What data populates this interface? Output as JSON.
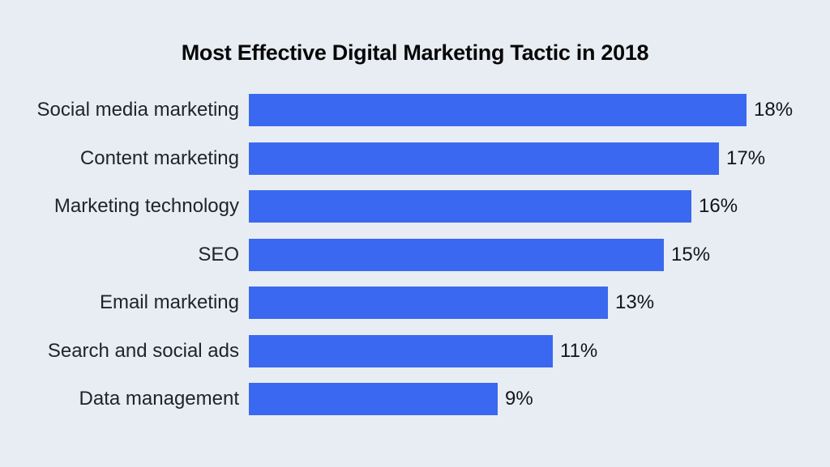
{
  "page": {
    "background_color": "#e8edf3"
  },
  "chart_data": {
    "type": "bar",
    "orientation": "horizontal",
    "title": "Most Effective Digital Marketing Tactic in 2018",
    "categories": [
      "Social media marketing",
      "Content marketing",
      "Marketing technology",
      "SEO",
      "Email marketing",
      "Search and social ads",
      "Data management"
    ],
    "values": [
      18,
      17,
      16,
      15,
      13,
      11,
      9
    ],
    "value_labels": [
      "18%",
      "17%",
      "16%",
      "15%",
      "13%",
      "11%",
      "9%"
    ],
    "value_suffix": "%",
    "xlim": [
      0,
      18
    ],
    "bar_color": "#3a68f0",
    "label_color": "#21242b",
    "title_color": "#070707",
    "grid": false,
    "legend": false
  }
}
